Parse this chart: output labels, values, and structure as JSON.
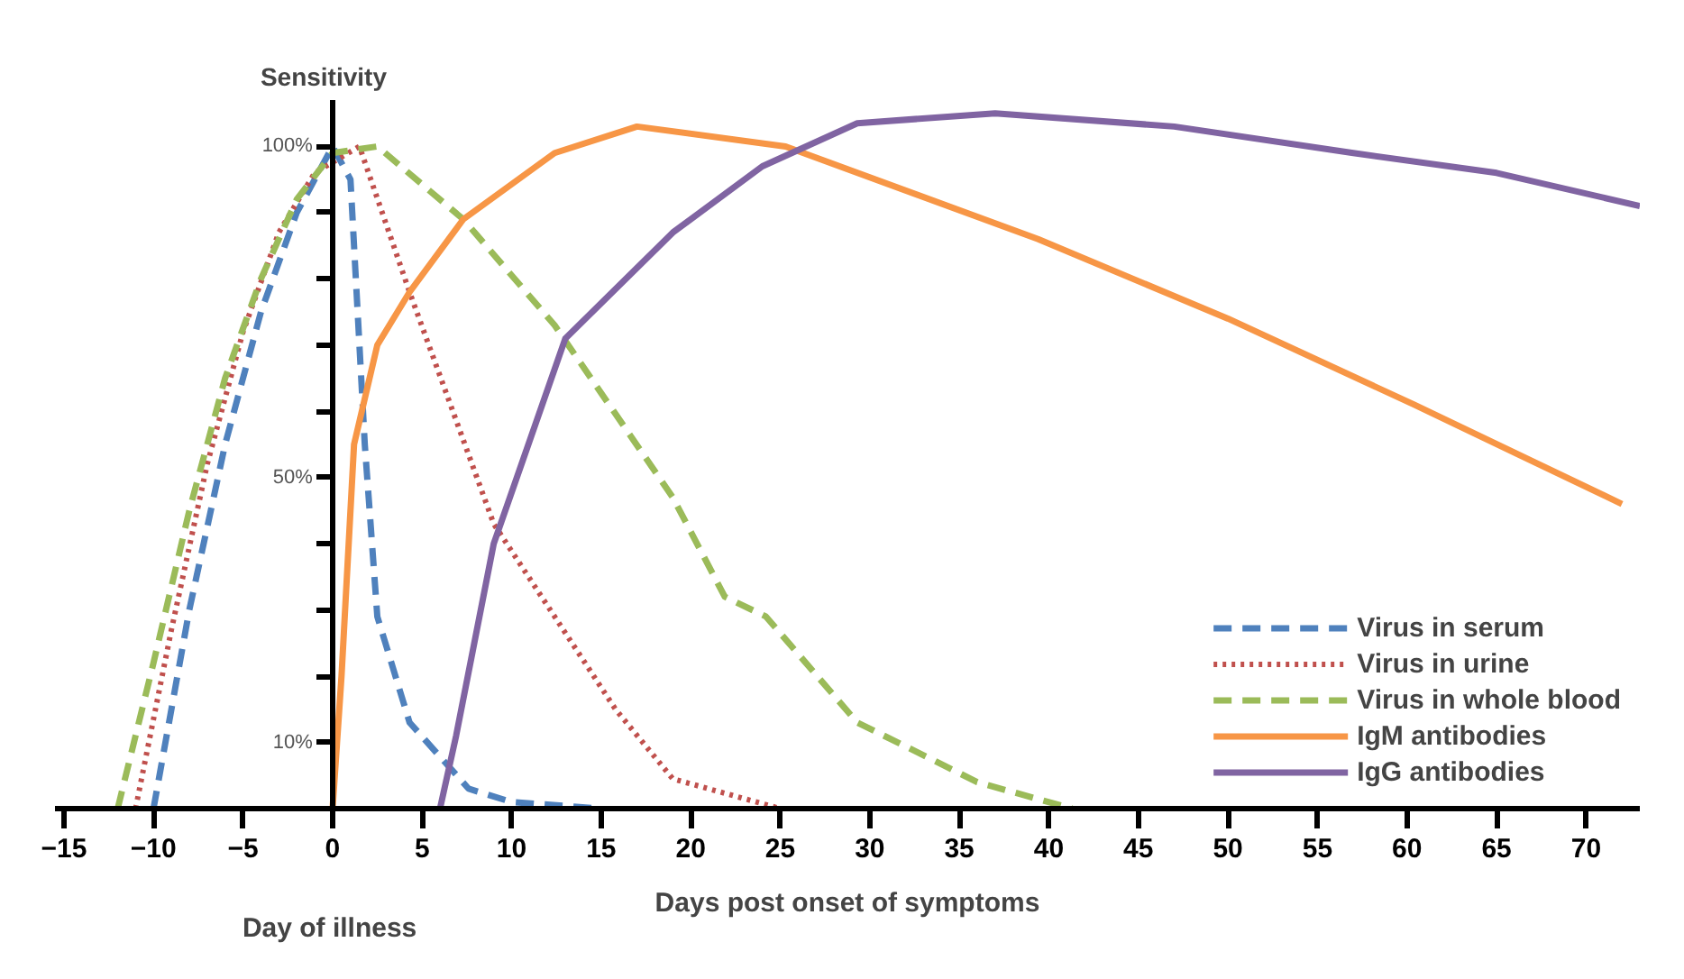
{
  "chart_data": {
    "type": "line",
    "ylabel": "Sensitivity",
    "xlabel": "Days post onset of symptoms",
    "annotations": [
      "Day of illness"
    ],
    "xlim": [
      -15.5,
      73
    ],
    "ylim": [
      0,
      107
    ],
    "xticks": [
      -15,
      -10,
      -5,
      0,
      5,
      10,
      15,
      20,
      25,
      30,
      35,
      40,
      45,
      50,
      55,
      60,
      65,
      70
    ],
    "yticks": [
      {
        "value": 10,
        "label": "10%"
      },
      {
        "value": 20,
        "label": null
      },
      {
        "value": 30,
        "label": null
      },
      {
        "value": 40,
        "label": null
      },
      {
        "value": 50,
        "label": "50%"
      },
      {
        "value": 60,
        "label": null
      },
      {
        "value": 70,
        "label": null
      },
      {
        "value": 80,
        "label": null
      },
      {
        "value": 90,
        "label": null
      },
      {
        "value": 100,
        "label": "100%"
      }
    ],
    "grid": false,
    "legend": "bottom right",
    "series": [
      {
        "name": "Virus in serum",
        "color": "#4f81bd",
        "line_style": "dashed",
        "x": [
          -10,
          -8,
          -6,
          -4,
          -2,
          0,
          1,
          1.8,
          2.5,
          4.3,
          7.6,
          10,
          15
        ],
        "values": [
          0,
          30,
          55,
          75,
          90,
          100,
          95,
          55,
          29,
          13,
          3,
          1,
          0
        ]
      },
      {
        "name": "Virus in urine",
        "color": "#c0504d",
        "line_style": "dotted",
        "x": [
          -11,
          -9,
          -7,
          -5,
          -3,
          -1,
          1.5,
          4.3,
          9,
          12.4,
          15.8,
          19,
          25
        ],
        "values": [
          0,
          27,
          52,
          72,
          87,
          96,
          100,
          78,
          43,
          29,
          15,
          4.5,
          0
        ]
      },
      {
        "name": "Virus in whole blood",
        "color": "#9bbb59",
        "line_style": "dashed",
        "x": [
          -12,
          -10,
          -8,
          -6,
          -4,
          -2,
          0,
          2.5,
          7.3,
          12.4,
          19,
          21.9,
          24.2,
          29.3,
          32.3,
          36,
          41.3
        ],
        "values": [
          0,
          22,
          45,
          65,
          80,
          92,
          99,
          100,
          89,
          73,
          47,
          32,
          29,
          13,
          9,
          4,
          0
        ]
      },
      {
        "name": "IgM antibodies",
        "color": "#f79646",
        "line_style": "solid",
        "x": [
          0,
          0.2,
          0.5,
          1.2,
          2.5,
          4.3,
          7.3,
          12.4,
          17,
          25.3,
          39.4,
          50,
          60.4,
          72
        ],
        "values": [
          0,
          8,
          20,
          55,
          70,
          78,
          89,
          99,
          103,
          100,
          86,
          74,
          61,
          46
        ]
      },
      {
        "name": "IgG antibodies",
        "color": "#8064a2",
        "line_style": "solid",
        "x": [
          6,
          6.9,
          9,
          13,
          19,
          24,
          29.3,
          37,
          47,
          57,
          65,
          73
        ],
        "values": [
          0,
          11,
          40,
          71,
          87,
          97,
          103.5,
          105,
          103,
          99,
          96,
          91
        ]
      }
    ]
  }
}
